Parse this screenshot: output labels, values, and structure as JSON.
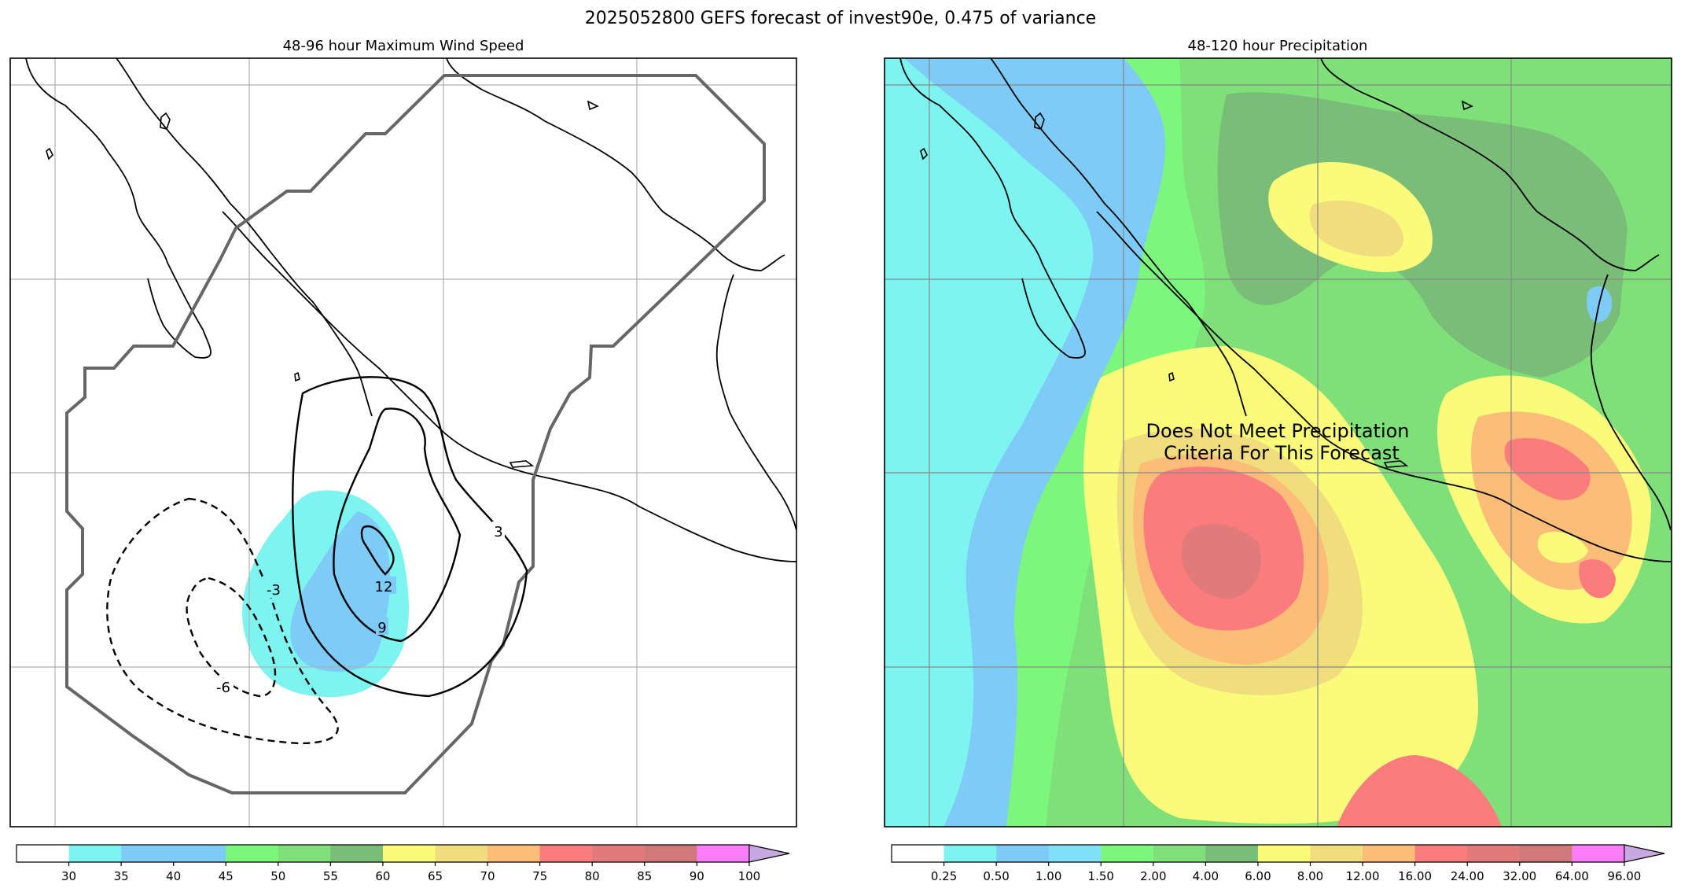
{
  "figure": {
    "suptitle": "2025052800 GEFS forecast of invest90e, 0.475 of variance"
  },
  "colors": {
    "coast": "#000000",
    "gridline": "#b0b0b0",
    "cone_outline": "#666666",
    "contour": "#000000",
    "axes_border": "#000000"
  },
  "chart_data": [
    {
      "id": "wind",
      "type": "contour",
      "title": "48-96 hour Maximum Wind Speed",
      "fill_field": "maximum wind speed",
      "colorbar": {
        "ticks": [
          "30",
          "35",
          "40",
          "45",
          "50",
          "55",
          "60",
          "65",
          "70",
          "75",
          "80",
          "85",
          "90",
          "100"
        ],
        "colors": [
          "#ffffff",
          "#7df4f0",
          "#7ecbf8",
          "#7ecbf8",
          "#7cf77c",
          "#7fe07a",
          "#79bd78",
          "#fbfb7b",
          "#f0dd7e",
          "#fbbd78",
          "#fb7c7c",
          "#e07a7b",
          "#d0797a",
          "#f97cf8",
          "#c8a8e0"
        ],
        "extend": "max"
      },
      "filled_levels": [
        "30-35",
        "35-40"
      ],
      "contour_lines": [
        {
          "label": "3",
          "style": "solid"
        },
        {
          "label": "9",
          "style": "solid"
        },
        {
          "label": "12",
          "style": "solid"
        },
        {
          "label": "-3",
          "style": "dashed"
        },
        {
          "label": "-6",
          "style": "dashed"
        }
      ],
      "annotation": "",
      "grid": true
    },
    {
      "id": "precip",
      "type": "contour",
      "title": "48-120 hour Precipitation",
      "fill_field": "precipitation",
      "colorbar": {
        "ticks": [
          "0.25",
          "0.50",
          "1.00",
          "1.50",
          "2.00",
          "4.00",
          "6.00",
          "8.00",
          "12.00",
          "16.00",
          "24.00",
          "32.00",
          "64.00",
          "96.00"
        ],
        "colors": [
          "#ffffff",
          "#7df4f0",
          "#7ecbf8",
          "#80e0f8",
          "#7cf77c",
          "#7fe07a",
          "#79bd78",
          "#fbfb7b",
          "#f0dd7e",
          "#fbbd78",
          "#fb7c7c",
          "#e07a7b",
          "#d0797a",
          "#f97cf8",
          "#c8a8e0"
        ],
        "extend": "max"
      },
      "annotation": "Does Not Meet Precipitation\nCriteria For This Forecast",
      "grid": true
    }
  ]
}
